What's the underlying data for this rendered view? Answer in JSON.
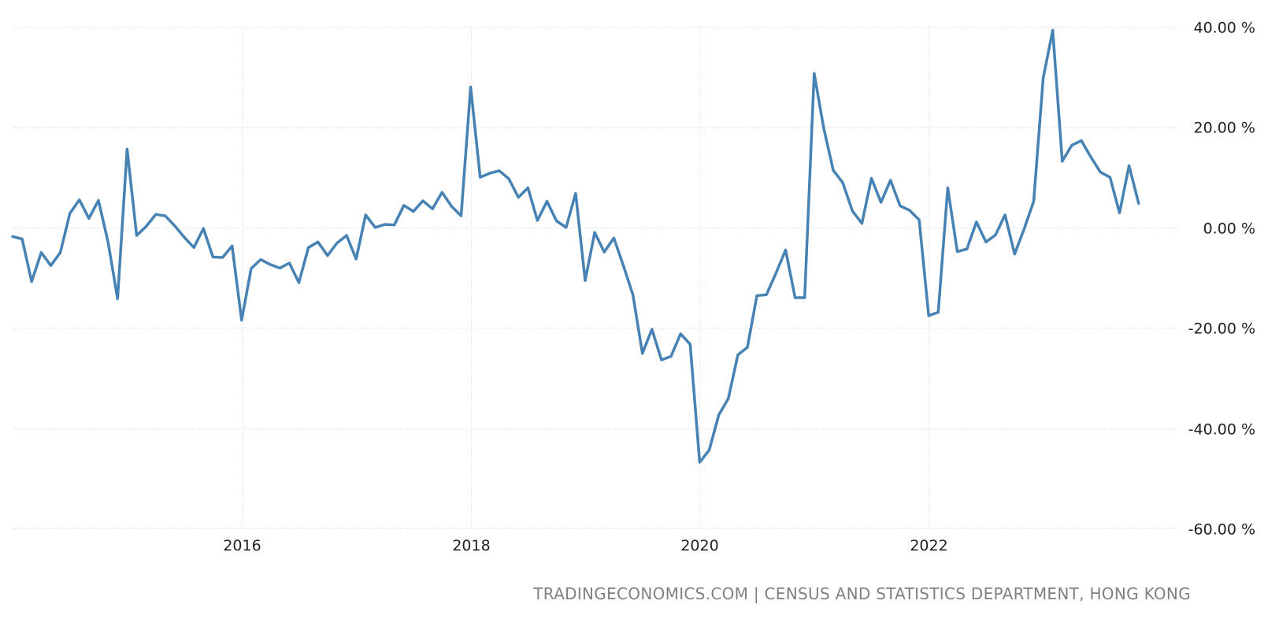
{
  "chart_data": {
    "type": "line",
    "title": "",
    "xlabel": "",
    "ylabel": "",
    "ylim": [
      -60,
      40
    ],
    "yticks": [
      40,
      20,
      0,
      -20,
      -40,
      -60
    ],
    "ytick_labels": [
      "40.00 %",
      "20.00 %",
      "0.00 %",
      "-20.00 %",
      "-40.00 %",
      "-60.00 %"
    ],
    "xticks": [
      2016,
      2018,
      2020,
      2022
    ],
    "xtick_labels": [
      "2016",
      "2018",
      "2020",
      "2022"
    ],
    "xlim": [
      2014.0,
      2024.0
    ],
    "grid": true,
    "line_color": "#4682b4",
    "series": [
      {
        "x": [
          "2014-01",
          "2014-02",
          "2014-03",
          "2014-04",
          "2014-05",
          "2014-06",
          "2014-07",
          "2014-08",
          "2014-09",
          "2014-10",
          "2014-11",
          "2014-12",
          "2015-01",
          "2015-02",
          "2015-03",
          "2015-04",
          "2015-05",
          "2015-06",
          "2015-07",
          "2015-08",
          "2015-09",
          "2015-10",
          "2015-11",
          "2015-12",
          "2016-01",
          "2016-02",
          "2016-03",
          "2016-04",
          "2016-05",
          "2016-06",
          "2016-07",
          "2016-08",
          "2016-09",
          "2016-10",
          "2016-11",
          "2016-12",
          "2017-01",
          "2017-02",
          "2017-03",
          "2017-04",
          "2017-05",
          "2017-06",
          "2017-07",
          "2017-08",
          "2017-09",
          "2017-10",
          "2017-11",
          "2017-12",
          "2018-01",
          "2018-02",
          "2018-03",
          "2018-04",
          "2018-05",
          "2018-06",
          "2018-07",
          "2018-08",
          "2018-09",
          "2018-10",
          "2018-11",
          "2018-12",
          "2019-01",
          "2019-02",
          "2019-03",
          "2019-04",
          "2019-05",
          "2019-06",
          "2019-07",
          "2019-08",
          "2019-09",
          "2019-10",
          "2019-11",
          "2019-12",
          "2020-01",
          "2020-02",
          "2020-03",
          "2020-04",
          "2020-05",
          "2020-06",
          "2020-07",
          "2020-08",
          "2020-09",
          "2020-10",
          "2020-11",
          "2020-12",
          "2021-01",
          "2021-02",
          "2021-03",
          "2021-04",
          "2021-05",
          "2021-06",
          "2021-07",
          "2021-08",
          "2021-09",
          "2021-10",
          "2021-11",
          "2021-12",
          "2022-01",
          "2022-02",
          "2022-03",
          "2022-04",
          "2022-05",
          "2022-06",
          "2022-07",
          "2022-08",
          "2022-09",
          "2022-10",
          "2022-11",
          "2022-12",
          "2023-01",
          "2023-02",
          "2023-03",
          "2023-04",
          "2023-05",
          "2023-06",
          "2023-07",
          "2023-08",
          "2023-09",
          "2023-10",
          "2023-11",
          "2023-12"
        ],
        "values": [
          -1.8,
          -2.3,
          -10.8,
          -5.0,
          -7.6,
          -5.0,
          2.8,
          5.5,
          1.8,
          5.4,
          -2.9,
          -14.2,
          15.6,
          -1.6,
          0.2,
          2.6,
          2.3,
          0.3,
          -2.0,
          -4.0,
          -0.2,
          -5.9,
          -6.0,
          -3.7,
          -18.5,
          -8.2,
          -6.4,
          -7.4,
          -8.1,
          -7.1,
          -11.0,
          -4.0,
          -2.9,
          -5.6,
          -3.1,
          -1.6,
          -6.3,
          2.5,
          0.0,
          0.6,
          0.5,
          4.4,
          3.2,
          5.3,
          3.7,
          7.0,
          4.2,
          2.3,
          28.0,
          10.0,
          10.8,
          11.3,
          9.7,
          6.0,
          7.9,
          1.4,
          5.2,
          1.3,
          0.0,
          6.8,
          -10.6,
          -1.0,
          -4.9,
          -2.1,
          -7.6,
          -13.4,
          -25.1,
          -20.3,
          -26.4,
          -25.7,
          -21.2,
          -23.3,
          -46.8,
          -44.4,
          -37.4,
          -34.1,
          -25.4,
          -23.9,
          -13.6,
          -13.4,
          -9.1,
          -4.5,
          -14.0,
          -14.0,
          30.7,
          19.8,
          11.4,
          8.9,
          3.3,
          0.8,
          9.8,
          5.0,
          9.4,
          4.3,
          3.4,
          1.5,
          -17.6,
          -16.9,
          7.9,
          -4.8,
          -4.3,
          1.1,
          -2.9,
          -1.5,
          2.5,
          -5.3,
          -0.3,
          5.2,
          29.8,
          39.3,
          13.2,
          16.4,
          17.3,
          14.0,
          11.0,
          10.0,
          2.9,
          12.3,
          4.8,
          null
        ]
      }
    ]
  },
  "source_text": "TRADINGECONOMICS.COM | CENSUS AND STATISTICS DEPARTMENT, HONG KONG"
}
